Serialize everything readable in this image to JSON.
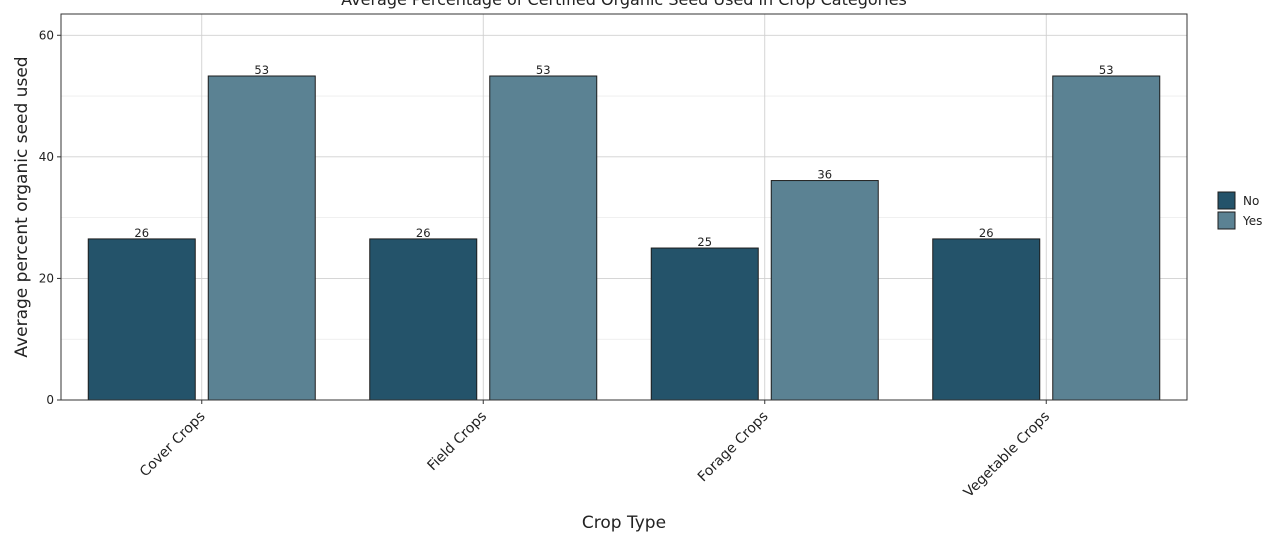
{
  "chart_data": {
    "type": "bar",
    "title": "Average Percentage of Certified Organic Seed Used in Crop Categories",
    "xlabel": "Crop Type",
    "ylabel": "Average percent organic seed used",
    "categories": [
      "Cover Crops",
      "Field Crops",
      "Forage Crops",
      "Vegetable Crops"
    ],
    "series": [
      {
        "name": "No",
        "values": [
          26.5,
          26.5,
          25,
          26.5
        ],
        "labels": [
          "26",
          "26",
          "25",
          "26"
        ],
        "color": "#24536a"
      },
      {
        "name": "Yes",
        "values": [
          53.3,
          53.3,
          36.1,
          53.3
        ],
        "labels": [
          "53",
          "53",
          "36",
          "53"
        ],
        "color": "#5b8293"
      }
    ],
    "ylim": [
      0,
      63.5
    ],
    "yticks": [
      0,
      20,
      40,
      60
    ],
    "grid": true,
    "legend": "right"
  }
}
